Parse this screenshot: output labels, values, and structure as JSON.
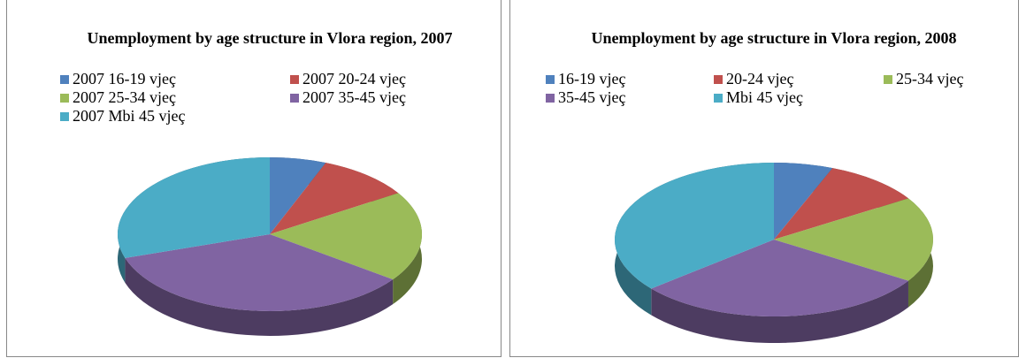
{
  "chart_data": [
    {
      "type": "pie",
      "title": "Unemployment by age structure in Vlora region, 2007",
      "categories": [
        "2007 16-19 vjeç",
        "2007 20-24 vjeç",
        "2007 25-34 vjeç",
        "2007 35-45 vjeç",
        "2007 Mbi 45 vjeç"
      ],
      "values": [
        6,
        10,
        19,
        35,
        30
      ],
      "colors": [
        "#4f81bd",
        "#c0504d",
        "#9bbb59",
        "#8064a2",
        "#4bacc6"
      ]
    },
    {
      "type": "pie",
      "title": "Unemployment  by age structure  in Vlora region, 2008",
      "categories": [
        "16-19 vjeç",
        "20-24 vjeç",
        "25-34 vjeç",
        "35-45 vjeç",
        "Mbi 45 vjeç"
      ],
      "values": [
        6,
        10,
        18,
        30,
        36
      ],
      "colors": [
        "#4f81bd",
        "#c0504d",
        "#9bbb59",
        "#8064a2",
        "#4bacc6"
      ]
    }
  ]
}
